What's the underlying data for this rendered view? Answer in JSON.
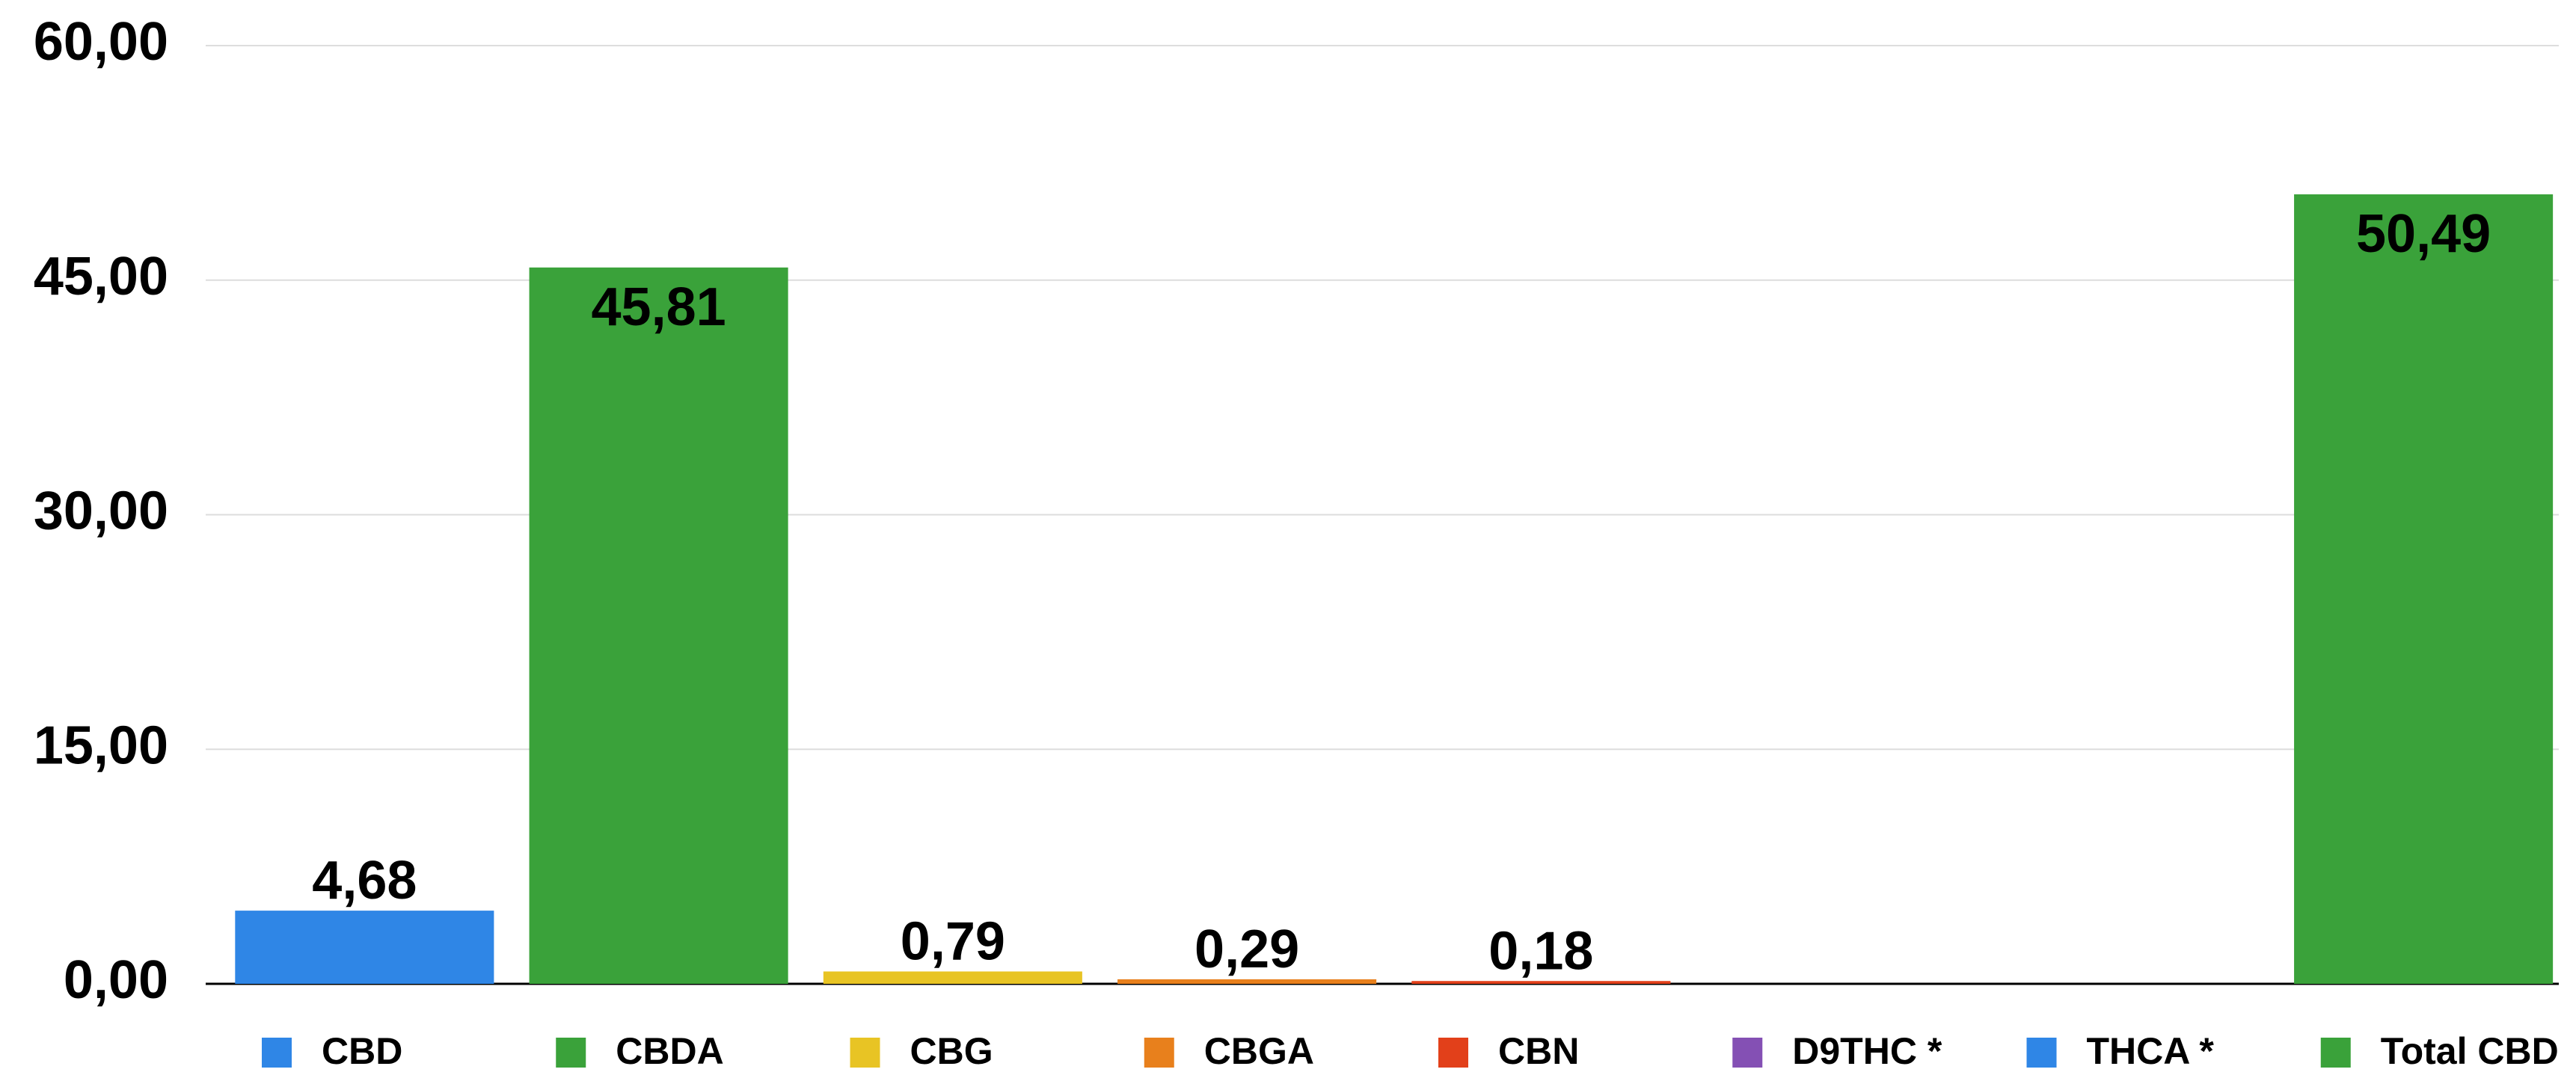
{
  "chart_data": {
    "type": "bar",
    "categories": [
      "CBD",
      "CBDA",
      "CBG",
      "CBGA",
      "CBN",
      "D9THC *",
      "THCA *",
      "Total CBD"
    ],
    "values": [
      4.68,
      45.81,
      0.79,
      0.29,
      0.18,
      null,
      null,
      50.49
    ],
    "value_labels": [
      "4,68",
      "45,81",
      "0,79",
      "0,29",
      "0,18",
      null,
      null,
      "50,49"
    ],
    "colors": [
      "#2f86e6",
      "#3aa23a",
      "#e8c424",
      "#e8801c",
      "#e2401a",
      "#8450b4",
      "#2f86e6",
      "#3aa23a"
    ],
    "ylim": [
      0,
      60
    ],
    "yticks": [
      {
        "value": 0,
        "label": "0,00"
      },
      {
        "value": 15,
        "label": "15,00"
      },
      {
        "value": 30,
        "label": "30,00"
      },
      {
        "value": 45,
        "label": "45,00"
      },
      {
        "value": 60,
        "label": "60,00"
      }
    ],
    "grid": true,
    "legend": "bottom"
  }
}
